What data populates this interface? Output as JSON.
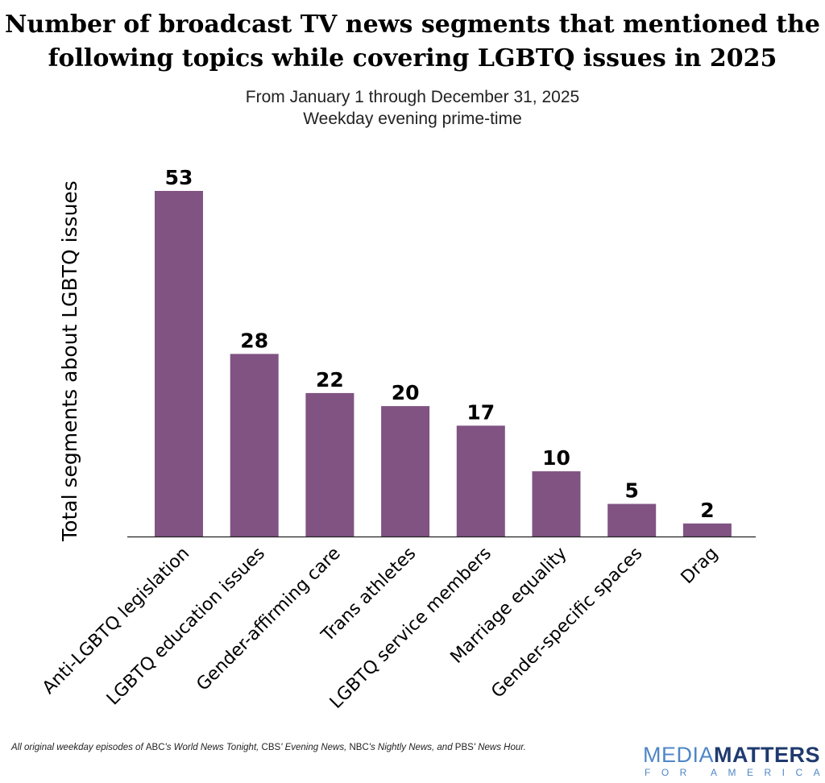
{
  "chart_data": {
    "type": "bar",
    "title": "Number of broadcast TV news segments that mentioned the following topics while covering LGBTQ issues in 2025",
    "title_lines": [
      "Number of broadcast TV news segments that mentioned the",
      "following topics while covering LGBTQ issues in 2025"
    ],
    "subtitle_lines": [
      "From January 1 through December 31, 2025",
      "Weekday evening prime-time"
    ],
    "xlabel": "",
    "ylabel": "Total segments about LGBTQ issues",
    "categories": [
      "Anti-LGBTQ legislation",
      "LGBTQ education issues",
      "Gender-affirming care",
      "Trans athletes",
      "LGBTQ service members",
      "Marriage equality",
      "Gender-specific spaces",
      "Drag"
    ],
    "values": [
      53,
      28,
      22,
      20,
      17,
      10,
      5,
      2
    ],
    "ylim": [
      0,
      53
    ],
    "grid": false,
    "data_labels": true,
    "bar_color": "#805383"
  },
  "footnote": {
    "p1": "All original weekday episodes of ",
    "p2": "ABC",
    "p3": "'s World News Tonight, ",
    "p4": "CBS",
    "p5": "' Evening News, ",
    "p6": "NBC",
    "p7": "'s Nightly News, and ",
    "p8": "PBS",
    "p9": "' News Hour."
  },
  "logo": {
    "word1": "MEDIA",
    "word2": "MATTERS",
    "sub": "FOR AMERICA"
  }
}
